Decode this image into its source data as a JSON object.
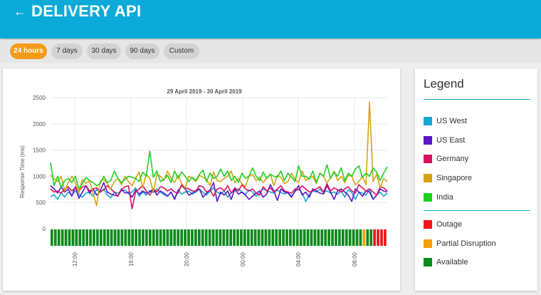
{
  "app": {
    "title": "DELIVERY API",
    "back_icon": "arrow-left-icon"
  },
  "time_ranges": [
    {
      "label": "24 hours",
      "active": true
    },
    {
      "label": "7 days",
      "active": false
    },
    {
      "label": "30 days",
      "active": false
    },
    {
      "label": "90 days",
      "active": false
    },
    {
      "label": "Custom",
      "active": false
    }
  ],
  "legend": {
    "title": "Legend",
    "regions": [
      {
        "name": "US West",
        "color": "#17a7d4"
      },
      {
        "name": "US East",
        "color": "#5b16c9"
      },
      {
        "name": "Germany",
        "color": "#d7135f"
      },
      {
        "name": "Singapore",
        "color": "#d4a315"
      },
      {
        "name": "India",
        "color": "#1fd11f"
      }
    ],
    "status": [
      {
        "name": "Outage",
        "color": "#f0141d"
      },
      {
        "name": "Partial Disruption",
        "color": "#f5a00d"
      },
      {
        "name": "Available",
        "color": "#0c8a1a"
      }
    ]
  },
  "chart_data": {
    "type": "line",
    "title": "29 April 2019 - 30 April 2019",
    "ylabel": "Response Time (ms)",
    "xlabel": "",
    "ylim": [
      0,
      2500
    ],
    "yticks": [
      0,
      500,
      1000,
      1500,
      2000,
      2500
    ],
    "xticks": [
      "12:00",
      "16:00",
      "20:00",
      "00:00",
      "04:00",
      "08:00"
    ],
    "grid": true,
    "x_points": 96,
    "series": [
      {
        "name": "US West",
        "color": "#17a7d4",
        "values": [
          610,
          650,
          560,
          690,
          600,
          700,
          640,
          720,
          650,
          600,
          680,
          700,
          620,
          750,
          690,
          760,
          640,
          590,
          700,
          680,
          720,
          740,
          660,
          700,
          780,
          620,
          700,
          640,
          730,
          690,
          760,
          700,
          650,
          620,
          700,
          580,
          740,
          660,
          700,
          720,
          660,
          700,
          760,
          690,
          640,
          720,
          780,
          700,
          660,
          720,
          600,
          690,
          720,
          760,
          700,
          660,
          740,
          700,
          620,
          690,
          760,
          720,
          700,
          680,
          740,
          690,
          660,
          700,
          620,
          710,
          760,
          680,
          520,
          650,
          720,
          700,
          760,
          690,
          720,
          680,
          700,
          660,
          720,
          600,
          740,
          690,
          560,
          700,
          680,
          640,
          760,
          560,
          640,
          700,
          620,
          680
        ]
      },
      {
        "name": "US East",
        "color": "#5b16c9",
        "values": [
          820,
          760,
          680,
          800,
          700,
          760,
          620,
          800,
          580,
          700,
          820,
          680,
          760,
          640,
          720,
          880,
          700,
          660,
          640,
          620,
          760,
          680,
          700,
          600,
          740,
          660,
          720,
          680,
          700,
          760,
          640,
          720,
          680,
          620,
          700,
          560,
          720,
          820,
          760,
          640,
          680,
          720,
          760,
          600,
          680,
          740,
          880,
          520,
          700,
          640,
          720,
          560,
          760,
          660,
          700,
          640,
          560,
          620,
          680,
          720,
          600,
          660,
          840,
          720,
          540,
          760,
          700,
          680,
          600,
          720,
          820,
          640,
          700,
          600,
          760,
          720,
          680,
          660,
          820,
          700,
          560,
          720,
          760,
          700,
          640,
          520,
          760,
          700,
          620,
          720,
          700,
          560,
          640,
          760,
          720,
          700
        ]
      },
      {
        "name": "Germany",
        "color": "#d7135f",
        "values": [
          760,
          700,
          720,
          680,
          760,
          800,
          720,
          780,
          720,
          800,
          820,
          720,
          760,
          780,
          700,
          740,
          820,
          760,
          700,
          620,
          740,
          800,
          820,
          380,
          700,
          760,
          820,
          720,
          640,
          760,
          700,
          800,
          780,
          720,
          760,
          700,
          680,
          840,
          780,
          760,
          720,
          720,
          820,
          800,
          700,
          740,
          620,
          760,
          780,
          720,
          820,
          680,
          780,
          720,
          840,
          760,
          720,
          760,
          680,
          640,
          800,
          720,
          780,
          700,
          760,
          820,
          720,
          700,
          680,
          760,
          740,
          820,
          760,
          700,
          720,
          760,
          800,
          700,
          860,
          720,
          780,
          740,
          700,
          760,
          800,
          720,
          680,
          840,
          780,
          720,
          760,
          700,
          640,
          800,
          780,
          720
        ]
      },
      {
        "name": "Singapore",
        "color": "#d4a315",
        "values": [
          1020,
          960,
          900,
          1000,
          720,
          880,
          1000,
          880,
          680,
          940,
          860,
          920,
          680,
          440,
          900,
          940,
          860,
          760,
          900,
          960,
          840,
          1000,
          900,
          820,
          960,
          1080,
          780,
          1040,
          960,
          700,
          1040,
          1000,
          920,
          1100,
          960,
          880,
          1020,
          860,
          780,
          1000,
          960,
          900,
          1020,
          980,
          940,
          820,
          1080,
          920,
          900,
          960,
          1000,
          1100,
          880,
          960,
          860,
          800,
          1000,
          1040,
          920,
          980,
          880,
          960,
          1040,
          820,
          1020,
          980,
          860,
          900,
          1060,
          940,
          880,
          1100,
          920,
          960,
          1000,
          860,
          1060,
          1000,
          880,
          960,
          1100,
          920,
          1000,
          880,
          1020,
          1000,
          840,
          900,
          1000,
          840,
          2420,
          900,
          1040,
          780,
          960,
          900
        ]
      },
      {
        "name": "India",
        "color": "#1fd11f",
        "values": [
          1260,
          820,
          1000,
          780,
          920,
          960,
          880,
          1000,
          760,
          860,
          980,
          920,
          880,
          820,
          860,
          1000,
          880,
          920,
          1100,
          960,
          880,
          940,
          1000,
          980,
          960,
          900,
          1080,
          1000,
          1480,
          980,
          1100,
          900,
          940,
          1020,
          880,
          1100,
          960,
          1080,
          1000,
          900,
          980,
          920,
          1040,
          1120,
          900,
          1060,
          960,
          1000,
          1140,
          1000,
          1100,
          920,
          1000,
          880,
          1060,
          960,
          1000,
          1160,
          1000,
          920,
          1080,
          960,
          1040,
          1000,
          980,
          1100,
          920,
          1060,
          980,
          900,
          1200,
          1000,
          1000,
          940,
          1100,
          880,
          1060,
          1000,
          1220,
          960,
          1080,
          1000,
          1160,
          920,
          1060,
          1000,
          1140,
          1200,
          980,
          1060,
          1000,
          1160,
          1080,
          920,
          1060,
          1180
        ]
      }
    ],
    "status_strip": {
      "available_count": 91,
      "partial_count": 1,
      "outage_count": 4,
      "order": [
        "available",
        "partial",
        "available",
        "outage"
      ]
    }
  }
}
